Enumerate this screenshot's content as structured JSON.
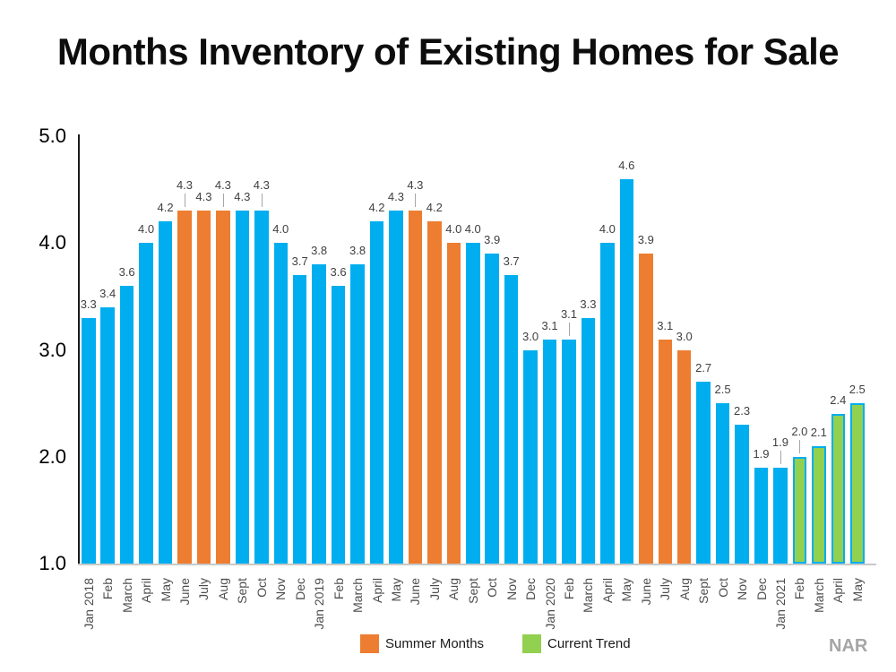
{
  "source_label": "NAR",
  "legend": {
    "summer": {
      "label": "Summer Months",
      "color": "#ED7D31"
    },
    "trend": {
      "label": "Current Trend",
      "color": "#92D050"
    }
  },
  "colors": {
    "blue": "#00AEEF",
    "orange": "#ED7D31",
    "green": "#92D050",
    "green_border": "#00AEEF",
    "value_label": "#404040",
    "axis_text": "#4d4d4d",
    "leader_line": "#a6a6a6"
  },
  "chart_data": {
    "type": "bar",
    "title": "Months Inventory of Existing Homes for Sale",
    "xlabel": "",
    "ylabel": "",
    "ylim": [
      1.0,
      5.0
    ],
    "yticks": [
      5.0,
      4.0,
      3.0,
      2.0,
      1.0
    ],
    "grid": false,
    "legend_position": "bottom",
    "categories": [
      "Jan 2018",
      "Feb",
      "March",
      "April",
      "May",
      "June",
      "July",
      "Aug",
      "Sept",
      "Oct",
      "Nov",
      "Dec",
      "Jan 2019",
      "Feb",
      "March",
      "April",
      "May",
      "June",
      "July",
      "Aug",
      "Sept",
      "Oct",
      "Nov",
      "Dec",
      "Jan 2020",
      "Feb",
      "March",
      "April",
      "May",
      "June",
      "July",
      "Aug",
      "Sept",
      "Oct",
      "Nov",
      "Dec",
      "Jan 2021",
      "Feb",
      "March",
      "April",
      "May"
    ],
    "values": [
      3.3,
      3.4,
      3.6,
      4.0,
      4.2,
      4.3,
      4.3,
      4.3,
      4.3,
      4.3,
      4.0,
      3.7,
      3.8,
      3.6,
      3.8,
      4.2,
      4.3,
      4.3,
      4.2,
      4.0,
      4.0,
      3.9,
      3.7,
      3.0,
      3.1,
      3.1,
      3.3,
      4.0,
      4.6,
      3.9,
      3.1,
      3.0,
      2.7,
      2.5,
      2.3,
      1.9,
      1.9,
      2.0,
      2.1,
      2.4,
      2.5
    ],
    "bar_groups": [
      "blue",
      "blue",
      "blue",
      "blue",
      "blue",
      "summer",
      "summer",
      "summer",
      "blue",
      "blue",
      "blue",
      "blue",
      "blue",
      "blue",
      "blue",
      "blue",
      "blue",
      "summer",
      "summer",
      "summer",
      "blue",
      "blue",
      "blue",
      "blue",
      "blue",
      "blue",
      "blue",
      "blue",
      "blue",
      "summer",
      "summer",
      "summer",
      "blue",
      "blue",
      "blue",
      "blue",
      "blue",
      "trend",
      "trend",
      "trend",
      "trend"
    ],
    "group_meaning": {
      "blue": "regular month",
      "summer": "Summer Months",
      "trend": "Current Trend"
    },
    "callout_indices": [
      5,
      7,
      9,
      17,
      25,
      36,
      37
    ],
    "data_labels_shown": true
  }
}
